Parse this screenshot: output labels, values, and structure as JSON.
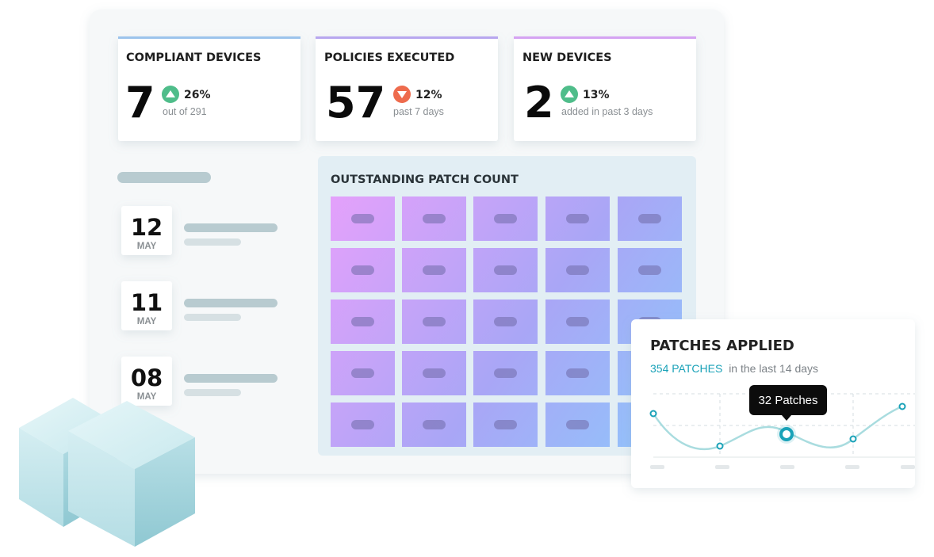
{
  "cards": [
    {
      "title": "COMPLIANT DEVICES",
      "value": "7",
      "change": "26%",
      "note": "out of 291"
    },
    {
      "title": "POLICIES EXECUTED",
      "value": "57",
      "change": "12%",
      "note": "past 7 days"
    },
    {
      "title": "NEW DEVICES",
      "value": "2",
      "change": "13%",
      "note": "added in past 3 days"
    }
  ],
  "dates": [
    {
      "day": "12",
      "month": "MAY"
    },
    {
      "day": "11",
      "month": "MAY"
    },
    {
      "day": "08",
      "month": "MAY"
    }
  ],
  "patch_grid": {
    "title": "OUTSTANDING PATCH COUNT"
  },
  "patches_applied": {
    "title": "PATCHES APPLIED",
    "count": "354 PATCHES",
    "period": "in the last 14 days",
    "tooltip": "32 Patches"
  }
}
